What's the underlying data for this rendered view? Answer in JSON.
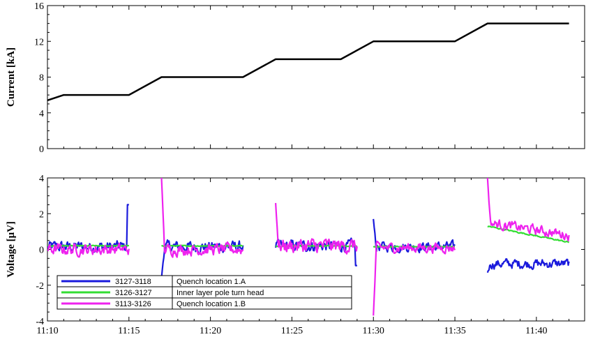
{
  "chart_data": [
    {
      "type": "line",
      "ylabel": "Current [kA]",
      "ylim": [
        0,
        16
      ],
      "yticks": [
        0,
        4,
        8,
        12,
        16
      ],
      "xlim": [
        "11:10",
        "11:42"
      ],
      "grid": false,
      "series": [
        {
          "color": "#000000",
          "x": [
            "11:10",
            "11:11",
            "11:15",
            "11:17",
            "11:22",
            "11:24",
            "11:28",
            "11:30",
            "11:35",
            "11:37",
            "11:42"
          ],
          "y": [
            5.4,
            6,
            6,
            8,
            8,
            10,
            10,
            12,
            12,
            14,
            14
          ]
        }
      ]
    },
    {
      "type": "line",
      "ylabel": "Voltage [μV]",
      "ylim": [
        -4,
        4
      ],
      "yticks": [
        -4,
        -2,
        0,
        2,
        4
      ],
      "xlim": [
        "11:10",
        "11:42"
      ],
      "xticks": [
        "11:10",
        "11:15",
        "11:20",
        "11:25",
        "11:30",
        "11:35",
        "11:40"
      ],
      "grid": false,
      "legend_position": "bottom-left",
      "series": [
        {
          "name": "3127-3118",
          "description": "Quench location 1.A",
          "color": "#1a1adc",
          "segments": [
            {
              "start": "11:10",
              "end": "11:15",
              "level": 0.15,
              "noise": 0.35,
              "end_spike": 2.5
            },
            {
              "start": "11:17",
              "end": "11:22",
              "level": 0.15,
              "noise": 0.35,
              "start_spike": -1.6
            },
            {
              "start": "11:24",
              "end": "11:29",
              "level": 0.2,
              "noise": 0.35,
              "end_spike": -0.9
            },
            {
              "start": "11:30",
              "end": "11:35",
              "level": 0.15,
              "noise": 0.3,
              "start_spike": 1.7
            },
            {
              "start": "11:37",
              "end": "11:42",
              "level": -0.8,
              "noise": 0.3,
              "start_spike": -1.3
            }
          ]
        },
        {
          "name": "3126-3127",
          "description": "Inner layer pole turn head",
          "color": "#33dd33",
          "segments": [
            {
              "start": "11:10",
              "end": "11:15",
              "level": 0.2,
              "noise": 0.03
            },
            {
              "start": "11:17",
              "end": "11:22",
              "level": 0.2,
              "noise": 0.03
            },
            {
              "start": "11:24",
              "end": "11:29",
              "level": 0.2,
              "noise": 0.03
            },
            {
              "start": "11:30",
              "end": "11:35",
              "level": 0.15,
              "noise": 0.03
            },
            {
              "start": "11:37",
              "end": "11:42",
              "level": 1.3,
              "level_end": 0.4,
              "noise": 0.04
            }
          ]
        },
        {
          "name": "3113-3126",
          "description": "Quench location 1.B",
          "color": "#ee22ee",
          "segments": [
            {
              "start": "11:10",
              "end": "11:15",
              "level": 0.0,
              "noise": 0.35
            },
            {
              "start": "11:17",
              "end": "11:22",
              "level": 0.0,
              "noise": 0.35,
              "start_spike": 4.0
            },
            {
              "start": "11:24",
              "end": "11:29",
              "level": 0.2,
              "noise": 0.45,
              "start_spike": 2.6
            },
            {
              "start": "11:30",
              "end": "11:35",
              "level": 0.1,
              "noise": 0.3,
              "start_spike": -3.7
            },
            {
              "start": "11:37",
              "end": "11:42",
              "level": 1.5,
              "level_end": 0.8,
              "noise": 0.3,
              "start_spike": 4.0
            }
          ]
        }
      ]
    }
  ]
}
